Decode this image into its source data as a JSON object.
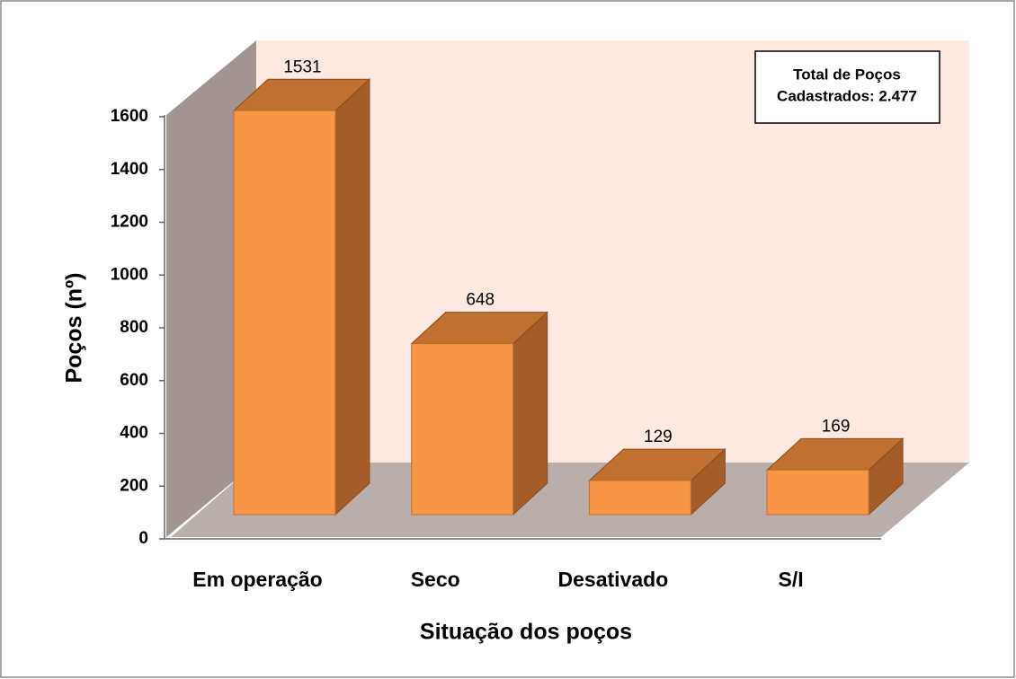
{
  "chart_data": {
    "type": "bar3d",
    "categories": [
      "Em operação",
      "Seco",
      "Desativado",
      "S/I"
    ],
    "values": [
      1531,
      648,
      129,
      169
    ],
    "color": "#f79646",
    "ylim": [
      0,
      1600
    ],
    "yticks": [
      0,
      200,
      400,
      600,
      800,
      1000,
      1200,
      1400,
      1600
    ],
    "ylabel": "Poços (nº)",
    "xlabel": "Situação dos poços",
    "annotation": [
      "Total de Poços",
      "Cadastrados: 2.477"
    ]
  }
}
